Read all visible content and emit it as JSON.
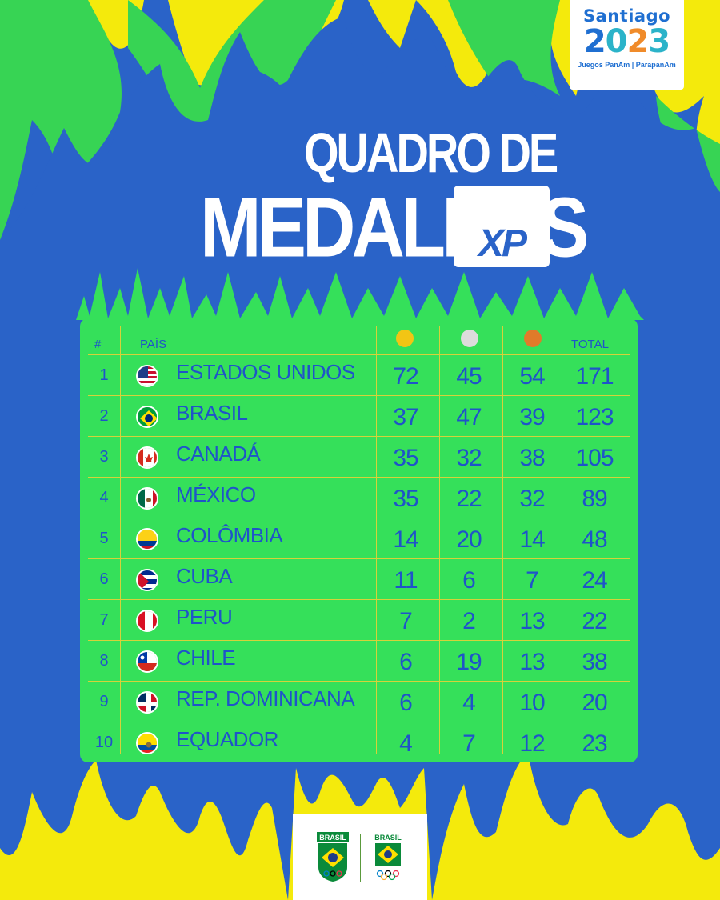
{
  "badge": {
    "city": "Santiago",
    "year_digits": [
      "2",
      "0",
      "2",
      "3"
    ],
    "subtitle": "Juegos PanAm | ParapanAm"
  },
  "title": {
    "line1": "QUADRO DE",
    "line2": "MEDALHAS",
    "sponsor": "XP"
  },
  "table": {
    "headers": {
      "rank": "#",
      "country": "PAÍS",
      "gold_icon": "gold-medal-icon",
      "silver_icon": "silver-medal-icon",
      "bronze_icon": "bronze-medal-icon",
      "total": "TOTAL"
    },
    "rows": [
      {
        "rank": "1",
        "country": "ESTADOS UNIDOS",
        "flag": "usa-flag-icon",
        "gold": "72",
        "silver": "45",
        "bronze": "54",
        "total": "171"
      },
      {
        "rank": "2",
        "country": "BRASIL",
        "flag": "brazil-flag-icon",
        "gold": "37",
        "silver": "47",
        "bronze": "39",
        "total": "123"
      },
      {
        "rank": "3",
        "country": "CANADÁ",
        "flag": "canada-flag-icon",
        "gold": "35",
        "silver": "32",
        "bronze": "38",
        "total": "105"
      },
      {
        "rank": "4",
        "country": "MÉXICO",
        "flag": "mexico-flag-icon",
        "gold": "35",
        "silver": "22",
        "bronze": "32",
        "total": "89"
      },
      {
        "rank": "5",
        "country": "COLÔMBIA",
        "flag": "colombia-flag-icon",
        "gold": "14",
        "silver": "20",
        "bronze": "14",
        "total": "48"
      },
      {
        "rank": "6",
        "country": "CUBA",
        "flag": "cuba-flag-icon",
        "gold": "11",
        "silver": "6",
        "bronze": "7",
        "total": "24"
      },
      {
        "rank": "7",
        "country": "PERU",
        "flag": "peru-flag-icon",
        "gold": "7",
        "silver": "2",
        "bronze": "13",
        "total": "22"
      },
      {
        "rank": "8",
        "country": "CHILE",
        "flag": "chile-flag-icon",
        "gold": "6",
        "silver": "19",
        "bronze": "13",
        "total": "38"
      },
      {
        "rank": "9",
        "country": "REP. DOMINICANA",
        "flag": "dominican-republic-flag-icon",
        "gold": "6",
        "silver": "4",
        "bronze": "10",
        "total": "20"
      },
      {
        "rank": "10",
        "country": "EQUADOR",
        "flag": "ecuador-flag-icon",
        "gold": "4",
        "silver": "7",
        "bronze": "12",
        "total": "23"
      }
    ]
  },
  "footer": {
    "logo1": "BRASIL",
    "logo2": "BRASIL"
  },
  "colors": {
    "background_blue": "#2a63c8",
    "table_green": "#35e05a",
    "grid_yellow": "#d6d23a",
    "text_blue": "#1f54c9",
    "gold": "#f2c514",
    "silver": "#dcdcdc",
    "bronze": "#e07b2a",
    "flame_yellow": "#f4ea0c",
    "flame_green": "#37d454"
  }
}
